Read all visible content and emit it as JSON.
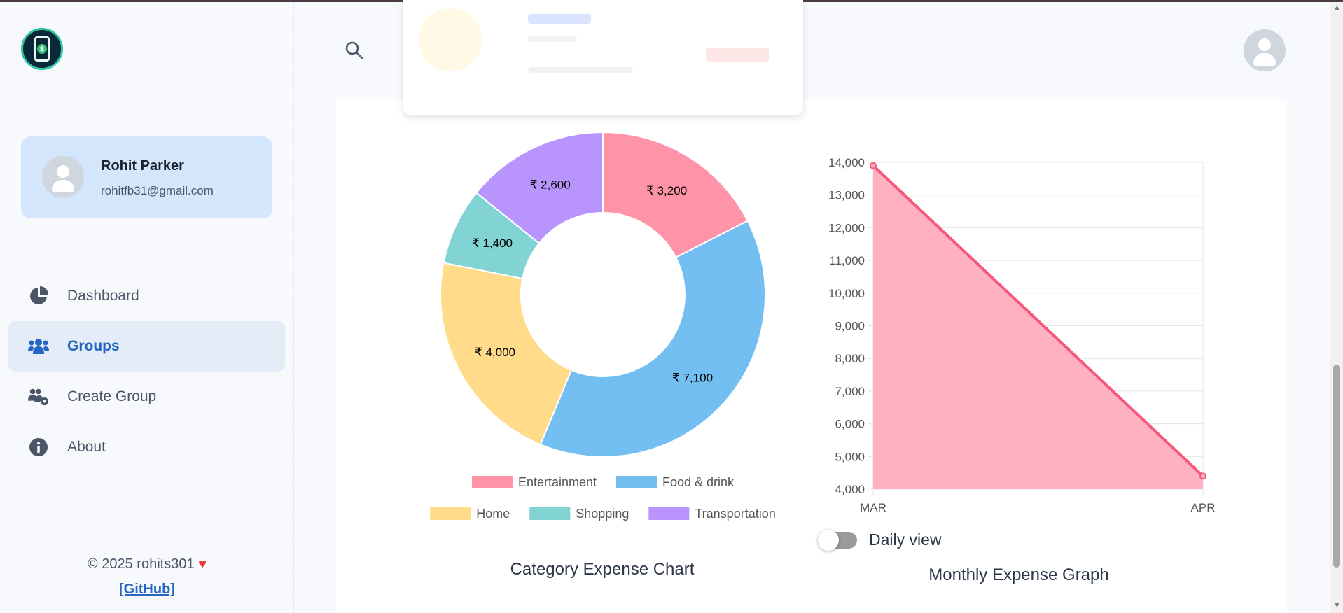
{
  "app": {
    "logo_name": "expense-app-logo"
  },
  "profile": {
    "name": "Rohit Parker",
    "email": "rohitfb31@gmail.com"
  },
  "nav": [
    {
      "label": "Dashboard",
      "icon": "pie-chart-icon",
      "active": false
    },
    {
      "label": "Groups",
      "icon": "users-icon",
      "active": true
    },
    {
      "label": "Create Group",
      "icon": "users-gear-icon",
      "active": false
    },
    {
      "label": "About",
      "icon": "info-icon",
      "active": false
    }
  ],
  "footer": {
    "copyright": "© 2025 rohits301",
    "link": "[GitHub]"
  },
  "toggle": {
    "label": "Daily view",
    "on": false
  },
  "colors": {
    "accent": "#2466c2",
    "profile_bg": "#d3e6fb",
    "line": "#f5587b",
    "area": "#ffb1c1"
  },
  "chart_data": [
    {
      "type": "pie",
      "title": "Category Expense Chart",
      "categories": [
        "Entertainment",
        "Food & drink",
        "Home",
        "Shopping",
        "Transportation"
      ],
      "values": [
        3200,
        7100,
        4000,
        1400,
        2600
      ],
      "labels": [
        "₹ 3,200",
        "₹ 7,100",
        "₹ 4,000",
        "₹ 1,400",
        "₹ 2,600"
      ],
      "colors": [
        "#ff93a8",
        "#74bff2",
        "#ffdb8a",
        "#82d3d3",
        "#b894fc"
      ],
      "legend": "bottom"
    },
    {
      "type": "area",
      "title": "Monthly Expense Graph",
      "x": [
        "MAR",
        "APR"
      ],
      "y": [
        13900,
        4400
      ],
      "ylim": [
        4000,
        14000
      ],
      "yticks": [
        "14,000",
        "13,000",
        "12,000",
        "11,000",
        "10,000",
        "9,000",
        "8,000",
        "7,000",
        "6,000",
        "5,000",
        "4,000"
      ],
      "grid": true
    }
  ]
}
